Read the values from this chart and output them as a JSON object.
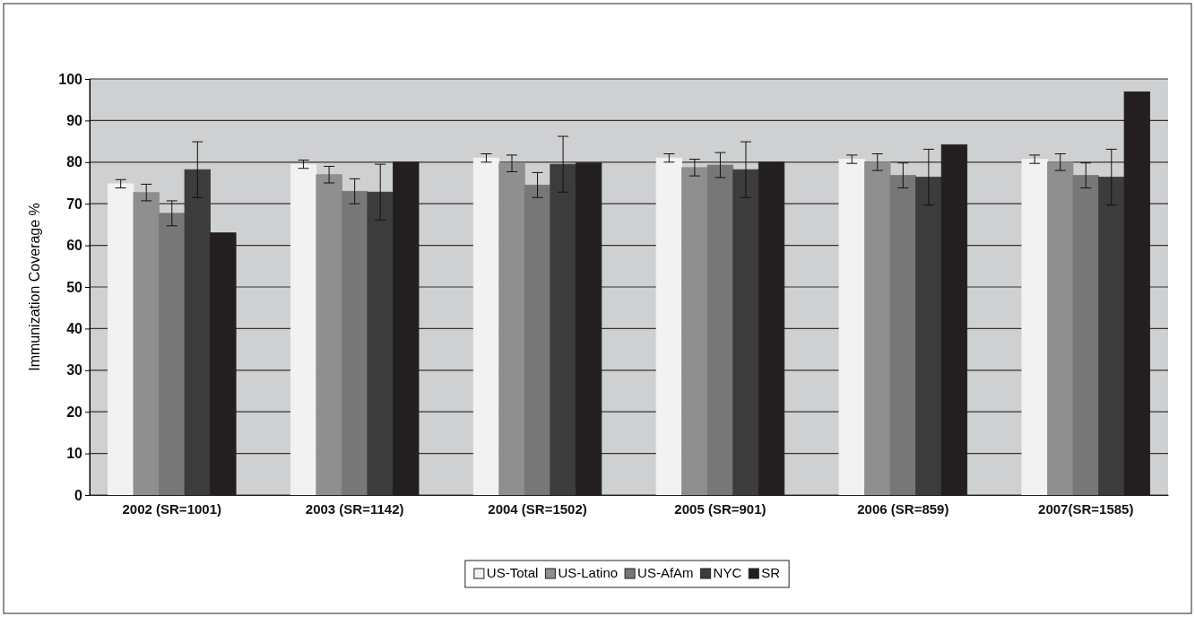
{
  "chart_data": {
    "type": "bar",
    "ylabel": "Immunization Coverage %",
    "categories": [
      "2002 (SR=1001)",
      "2003 (SR=1142)",
      "2004 (SR=1502)",
      "2005 (SR=901)",
      "2006 (SR=859)",
      "2007(SR=1585)"
    ],
    "series": [
      {
        "name": "US-Total",
        "color": "#f2f2f2",
        "values": [
          74.8,
          79.5,
          81,
          81,
          80.7,
          80.7
        ],
        "errors": [
          1,
          1,
          1,
          1,
          1,
          1
        ]
      },
      {
        "name": "US-Latino",
        "color": "#8f8f8f",
        "values": [
          72.7,
          77,
          79.7,
          78.7,
          80,
          80
        ],
        "errors": [
          2,
          2,
          2,
          2,
          2,
          2
        ]
      },
      {
        "name": "US-AfAm",
        "color": "#777777",
        "values": [
          67.7,
          73,
          74.5,
          79.3,
          76.8,
          76.8
        ],
        "errors": [
          3,
          3,
          3,
          3,
          3,
          3
        ]
      },
      {
        "name": "NYC",
        "color": "#3c3c3c",
        "values": [
          78.2,
          72.8,
          79.5,
          78.2,
          76.4,
          76.4
        ],
        "errors": [
          6.7,
          6.7,
          6.7,
          6.7,
          6.7,
          6.7
        ]
      },
      {
        "name": "SR",
        "color": "#231f20",
        "values": [
          63,
          80,
          79.8,
          80,
          84.2,
          96.9
        ]
      }
    ],
    "ylim": [
      0,
      100
    ],
    "yticks": [
      0,
      10,
      20,
      30,
      40,
      50,
      60,
      70,
      80,
      90,
      100
    ],
    "grid": "y",
    "legend": "bottom"
  }
}
